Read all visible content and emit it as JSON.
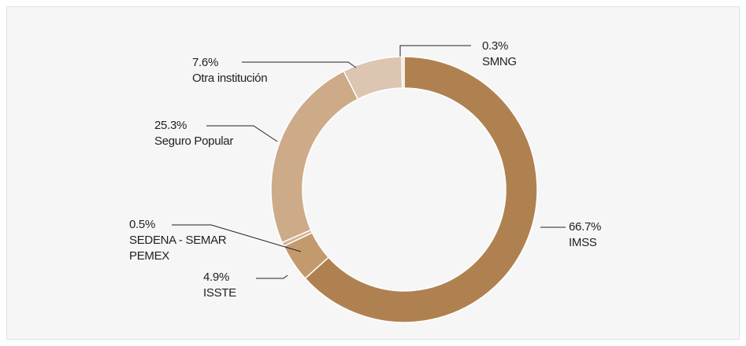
{
  "chart_data": {
    "type": "donut",
    "categories": [
      "IMSS",
      "ISSTE",
      "SEDENA - SEMAR PEMEX",
      "Seguro Popular",
      "Otra institución",
      "SMNG"
    ],
    "values": [
      66.7,
      4.9,
      0.5,
      25.3,
      7.6,
      0.3
    ],
    "value_labels": [
      "66.7%",
      "4.9%",
      "0.5%",
      "25.3%",
      "7.6%",
      "0.3%"
    ],
    "colors": [
      "#b08150",
      "#c39a6d",
      "#d2b393",
      "#cdab89",
      "#dcc5b1",
      "#e9ddd0"
    ]
  }
}
